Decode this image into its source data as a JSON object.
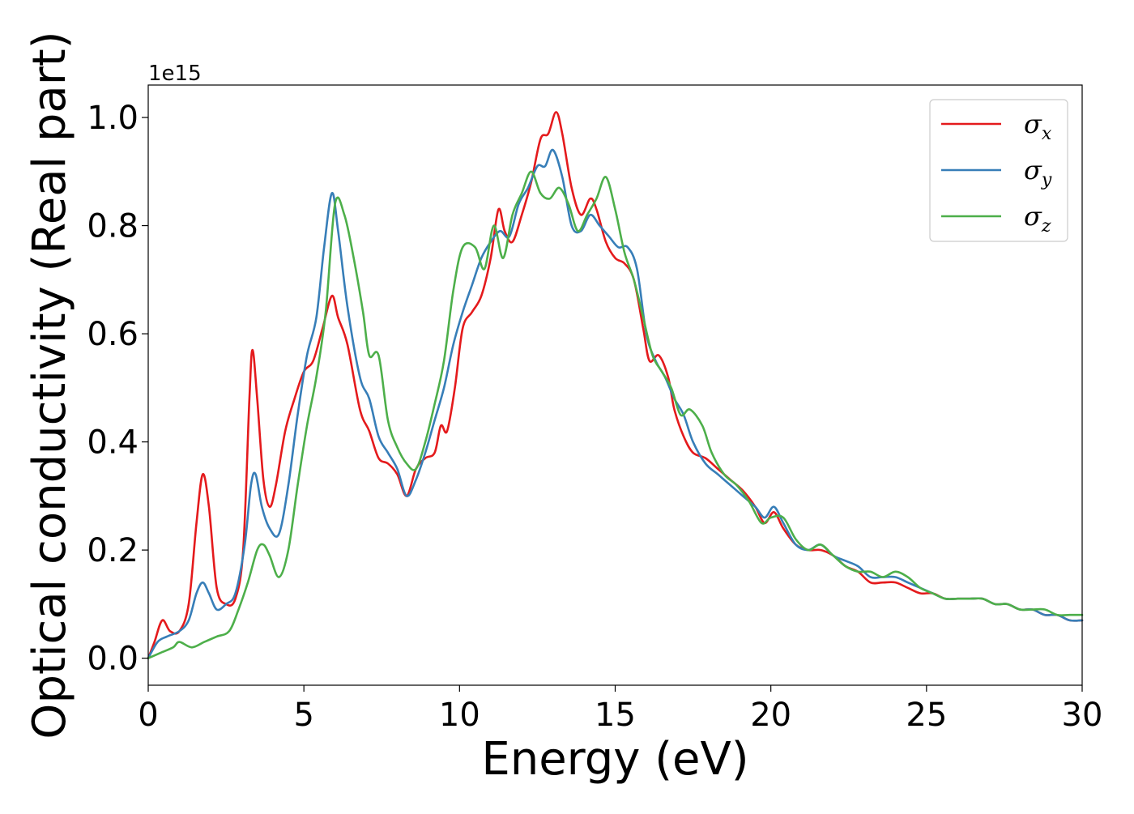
{
  "chart_data": {
    "type": "line",
    "xlabel": "Energy (eV)",
    "ylabel": "Optical conductivity (Real part)",
    "y_offset_label": "1e15",
    "xlim": [
      0,
      30
    ],
    "ylim": [
      -0.05,
      1.06
    ],
    "x_ticks": [
      0,
      5,
      10,
      15,
      20,
      25,
      30
    ],
    "x_tick_labels": [
      "0",
      "5",
      "10",
      "15",
      "20",
      "25",
      "30"
    ],
    "y_ticks": [
      0.0,
      0.2,
      0.4,
      0.6,
      0.8,
      1.0
    ],
    "y_tick_labels": [
      "0.0",
      "0.2",
      "0.4",
      "0.6",
      "0.8",
      "1.0"
    ],
    "grid": false,
    "legend_position": "top-right",
    "series": [
      {
        "name": "σx",
        "legend_symbol": "σ",
        "legend_subscript": "x",
        "color": "#e41a1c",
        "points": [
          [
            0,
            0
          ],
          [
            0.2,
            0.03
          ],
          [
            0.45,
            0.07
          ],
          [
            0.7,
            0.05
          ],
          [
            1.0,
            0.05
          ],
          [
            1.3,
            0.1
          ],
          [
            1.55,
            0.25
          ],
          [
            1.75,
            0.34
          ],
          [
            1.95,
            0.28
          ],
          [
            2.2,
            0.13
          ],
          [
            2.5,
            0.1
          ],
          [
            2.8,
            0.11
          ],
          [
            3.05,
            0.2
          ],
          [
            3.25,
            0.48
          ],
          [
            3.35,
            0.57
          ],
          [
            3.5,
            0.48
          ],
          [
            3.7,
            0.33
          ],
          [
            3.9,
            0.28
          ],
          [
            4.1,
            0.32
          ],
          [
            4.4,
            0.42
          ],
          [
            4.7,
            0.48
          ],
          [
            5.0,
            0.53
          ],
          [
            5.3,
            0.55
          ],
          [
            5.6,
            0.61
          ],
          [
            5.9,
            0.67
          ],
          [
            6.1,
            0.63
          ],
          [
            6.4,
            0.58
          ],
          [
            6.8,
            0.46
          ],
          [
            7.1,
            0.42
          ],
          [
            7.4,
            0.37
          ],
          [
            7.7,
            0.36
          ],
          [
            8.0,
            0.34
          ],
          [
            8.3,
            0.3
          ],
          [
            8.6,
            0.35
          ],
          [
            8.9,
            0.37
          ],
          [
            9.2,
            0.38
          ],
          [
            9.4,
            0.43
          ],
          [
            9.6,
            0.42
          ],
          [
            9.85,
            0.5
          ],
          [
            10.1,
            0.61
          ],
          [
            10.4,
            0.64
          ],
          [
            10.7,
            0.67
          ],
          [
            11.0,
            0.74
          ],
          [
            11.25,
            0.83
          ],
          [
            11.45,
            0.79
          ],
          [
            11.7,
            0.77
          ],
          [
            12.0,
            0.82
          ],
          [
            12.3,
            0.88
          ],
          [
            12.6,
            0.96
          ],
          [
            12.85,
            0.97
          ],
          [
            13.1,
            1.01
          ],
          [
            13.3,
            0.97
          ],
          [
            13.6,
            0.87
          ],
          [
            13.9,
            0.82
          ],
          [
            14.2,
            0.85
          ],
          [
            14.4,
            0.83
          ],
          [
            14.7,
            0.77
          ],
          [
            15.0,
            0.74
          ],
          [
            15.3,
            0.73
          ],
          [
            15.6,
            0.7
          ],
          [
            15.9,
            0.61
          ],
          [
            16.1,
            0.55
          ],
          [
            16.4,
            0.56
          ],
          [
            16.7,
            0.52
          ],
          [
            16.9,
            0.46
          ],
          [
            17.2,
            0.41
          ],
          [
            17.5,
            0.38
          ],
          [
            17.9,
            0.37
          ],
          [
            18.3,
            0.35
          ],
          [
            18.7,
            0.33
          ],
          [
            19.1,
            0.31
          ],
          [
            19.5,
            0.28
          ],
          [
            19.8,
            0.25
          ],
          [
            20.1,
            0.27
          ],
          [
            20.4,
            0.24
          ],
          [
            20.8,
            0.21
          ],
          [
            21.2,
            0.2
          ],
          [
            21.6,
            0.2
          ],
          [
            22.0,
            0.19
          ],
          [
            22.4,
            0.17
          ],
          [
            22.8,
            0.16
          ],
          [
            23.2,
            0.14
          ],
          [
            23.6,
            0.14
          ],
          [
            24.0,
            0.14
          ],
          [
            24.4,
            0.13
          ],
          [
            24.8,
            0.12
          ],
          [
            25.2,
            0.12
          ],
          [
            25.6,
            0.11
          ],
          [
            26.0,
            0.11
          ],
          [
            26.4,
            0.11
          ],
          [
            26.8,
            0.11
          ],
          [
            27.2,
            0.1
          ],
          [
            27.6,
            0.1
          ],
          [
            28.0,
            0.09
          ],
          [
            28.4,
            0.09
          ],
          [
            28.8,
            0.08
          ],
          [
            29.2,
            0.08
          ],
          [
            29.6,
            0.07
          ],
          [
            30.0,
            0.07
          ]
        ]
      },
      {
        "name": "σy",
        "legend_symbol": "σ",
        "legend_subscript": "y",
        "color": "#377eb8",
        "points": [
          [
            0,
            0
          ],
          [
            0.3,
            0.03
          ],
          [
            0.6,
            0.04
          ],
          [
            1.0,
            0.05
          ],
          [
            1.3,
            0.07
          ],
          [
            1.55,
            0.12
          ],
          [
            1.75,
            0.14
          ],
          [
            1.95,
            0.12
          ],
          [
            2.2,
            0.09
          ],
          [
            2.5,
            0.1
          ],
          [
            2.8,
            0.12
          ],
          [
            3.1,
            0.21
          ],
          [
            3.3,
            0.32
          ],
          [
            3.45,
            0.34
          ],
          [
            3.65,
            0.28
          ],
          [
            3.9,
            0.24
          ],
          [
            4.2,
            0.23
          ],
          [
            4.5,
            0.32
          ],
          [
            4.8,
            0.45
          ],
          [
            5.1,
            0.56
          ],
          [
            5.4,
            0.63
          ],
          [
            5.65,
            0.76
          ],
          [
            5.9,
            0.86
          ],
          [
            6.1,
            0.79
          ],
          [
            6.4,
            0.65
          ],
          [
            6.8,
            0.52
          ],
          [
            7.1,
            0.48
          ],
          [
            7.4,
            0.41
          ],
          [
            7.7,
            0.38
          ],
          [
            8.0,
            0.35
          ],
          [
            8.3,
            0.3
          ],
          [
            8.6,
            0.33
          ],
          [
            8.9,
            0.38
          ],
          [
            9.2,
            0.44
          ],
          [
            9.5,
            0.5
          ],
          [
            9.8,
            0.58
          ],
          [
            10.1,
            0.64
          ],
          [
            10.4,
            0.69
          ],
          [
            10.7,
            0.74
          ],
          [
            11.0,
            0.77
          ],
          [
            11.3,
            0.79
          ],
          [
            11.6,
            0.78
          ],
          [
            11.9,
            0.84
          ],
          [
            12.2,
            0.87
          ],
          [
            12.5,
            0.91
          ],
          [
            12.75,
            0.91
          ],
          [
            13.0,
            0.94
          ],
          [
            13.3,
            0.89
          ],
          [
            13.6,
            0.8
          ],
          [
            13.9,
            0.79
          ],
          [
            14.2,
            0.82
          ],
          [
            14.5,
            0.8
          ],
          [
            14.8,
            0.78
          ],
          [
            15.1,
            0.76
          ],
          [
            15.4,
            0.76
          ],
          [
            15.7,
            0.72
          ],
          [
            16.0,
            0.6
          ],
          [
            16.3,
            0.55
          ],
          [
            16.6,
            0.52
          ],
          [
            16.9,
            0.48
          ],
          [
            17.2,
            0.45
          ],
          [
            17.5,
            0.4
          ],
          [
            17.9,
            0.36
          ],
          [
            18.3,
            0.34
          ],
          [
            18.7,
            0.32
          ],
          [
            19.1,
            0.3
          ],
          [
            19.5,
            0.28
          ],
          [
            19.8,
            0.26
          ],
          [
            20.1,
            0.28
          ],
          [
            20.4,
            0.25
          ],
          [
            20.8,
            0.21
          ],
          [
            21.2,
            0.2
          ],
          [
            21.6,
            0.21
          ],
          [
            22.0,
            0.19
          ],
          [
            22.4,
            0.18
          ],
          [
            22.8,
            0.17
          ],
          [
            23.2,
            0.15
          ],
          [
            23.6,
            0.15
          ],
          [
            24.0,
            0.15
          ],
          [
            24.4,
            0.14
          ],
          [
            24.8,
            0.13
          ],
          [
            25.2,
            0.12
          ],
          [
            25.6,
            0.11
          ],
          [
            26.0,
            0.11
          ],
          [
            26.4,
            0.11
          ],
          [
            26.8,
            0.11
          ],
          [
            27.2,
            0.1
          ],
          [
            27.6,
            0.1
          ],
          [
            28.0,
            0.09
          ],
          [
            28.4,
            0.09
          ],
          [
            28.8,
            0.08
          ],
          [
            29.2,
            0.08
          ],
          [
            29.6,
            0.07
          ],
          [
            30.0,
            0.07
          ]
        ]
      },
      {
        "name": "σz",
        "legend_symbol": "σ",
        "legend_subscript": "z",
        "color": "#4daf4a",
        "points": [
          [
            0,
            0
          ],
          [
            0.4,
            0.01
          ],
          [
            0.8,
            0.02
          ],
          [
            1.0,
            0.03
          ],
          [
            1.4,
            0.02
          ],
          [
            1.8,
            0.03
          ],
          [
            2.2,
            0.04
          ],
          [
            2.6,
            0.05
          ],
          [
            2.9,
            0.09
          ],
          [
            3.2,
            0.14
          ],
          [
            3.5,
            0.2
          ],
          [
            3.7,
            0.21
          ],
          [
            3.9,
            0.19
          ],
          [
            4.2,
            0.15
          ],
          [
            4.5,
            0.2
          ],
          [
            4.8,
            0.32
          ],
          [
            5.1,
            0.43
          ],
          [
            5.4,
            0.52
          ],
          [
            5.7,
            0.64
          ],
          [
            6.0,
            0.84
          ],
          [
            6.3,
            0.82
          ],
          [
            6.6,
            0.74
          ],
          [
            6.9,
            0.64
          ],
          [
            7.1,
            0.56
          ],
          [
            7.4,
            0.56
          ],
          [
            7.7,
            0.44
          ],
          [
            8.0,
            0.39
          ],
          [
            8.3,
            0.36
          ],
          [
            8.6,
            0.35
          ],
          [
            8.9,
            0.4
          ],
          [
            9.2,
            0.47
          ],
          [
            9.5,
            0.55
          ],
          [
            9.8,
            0.68
          ],
          [
            10.1,
            0.76
          ],
          [
            10.5,
            0.76
          ],
          [
            10.8,
            0.72
          ],
          [
            11.1,
            0.8
          ],
          [
            11.4,
            0.74
          ],
          [
            11.7,
            0.82
          ],
          [
            12.0,
            0.86
          ],
          [
            12.3,
            0.9
          ],
          [
            12.6,
            0.86
          ],
          [
            12.9,
            0.85
          ],
          [
            13.2,
            0.87
          ],
          [
            13.5,
            0.84
          ],
          [
            13.8,
            0.79
          ],
          [
            14.1,
            0.82
          ],
          [
            14.4,
            0.85
          ],
          [
            14.7,
            0.89
          ],
          [
            15.0,
            0.83
          ],
          [
            15.3,
            0.75
          ],
          [
            15.6,
            0.7
          ],
          [
            15.9,
            0.63
          ],
          [
            16.2,
            0.56
          ],
          [
            16.5,
            0.53
          ],
          [
            16.8,
            0.5
          ],
          [
            17.1,
            0.45
          ],
          [
            17.4,
            0.46
          ],
          [
            17.8,
            0.43
          ],
          [
            18.1,
            0.38
          ],
          [
            18.5,
            0.34
          ],
          [
            18.9,
            0.32
          ],
          [
            19.3,
            0.29
          ],
          [
            19.7,
            0.25
          ],
          [
            20.0,
            0.26
          ],
          [
            20.4,
            0.26
          ],
          [
            20.8,
            0.22
          ],
          [
            21.2,
            0.2
          ],
          [
            21.6,
            0.21
          ],
          [
            22.0,
            0.19
          ],
          [
            22.4,
            0.17
          ],
          [
            22.8,
            0.16
          ],
          [
            23.2,
            0.16
          ],
          [
            23.6,
            0.15
          ],
          [
            24.0,
            0.16
          ],
          [
            24.4,
            0.15
          ],
          [
            24.8,
            0.13
          ],
          [
            25.2,
            0.12
          ],
          [
            25.6,
            0.11
          ],
          [
            26.0,
            0.11
          ],
          [
            26.4,
            0.11
          ],
          [
            26.8,
            0.11
          ],
          [
            27.2,
            0.1
          ],
          [
            27.6,
            0.1
          ],
          [
            28.0,
            0.09
          ],
          [
            28.4,
            0.09
          ],
          [
            28.8,
            0.09
          ],
          [
            29.2,
            0.08
          ],
          [
            29.6,
            0.08
          ],
          [
            30.0,
            0.08
          ]
        ]
      }
    ]
  }
}
